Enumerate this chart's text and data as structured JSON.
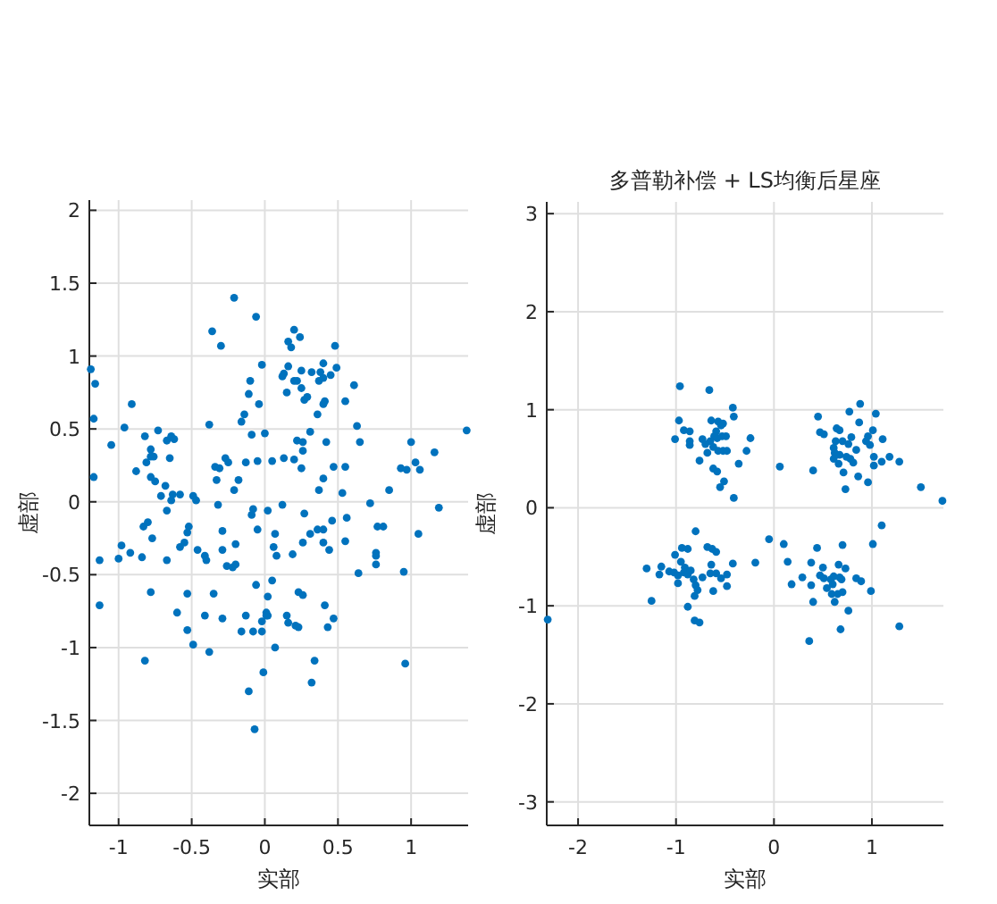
{
  "chart_data": [
    {
      "type": "scatter",
      "xlabel": "实部",
      "ylabel": "虚部",
      "xlim": [
        -1.2,
        1.39
      ],
      "ylim": [
        -2.22,
        2.07
      ],
      "xticks": [
        -1,
        -0.5,
        0,
        0.5,
        1
      ],
      "yticks": [
        -2,
        -1.5,
        -1,
        -0.5,
        0,
        0.5,
        1,
        1.5,
        2
      ],
      "grid": true,
      "marker": "circle",
      "series": [
        {
          "color": "#0072bd",
          "x": [
            -1.19,
            -1.16,
            -1.17,
            -1.17,
            -1.05,
            -0.96,
            -0.91,
            -0.88,
            -0.82,
            -0.81,
            -0.78,
            -0.78,
            -0.76,
            -0.78,
            -0.75,
            -0.73,
            -0.71,
            -0.67,
            -0.64,
            -0.62,
            -0.65,
            -0.68,
            -0.64,
            -0.58,
            -0.49,
            -0.47,
            -0.38,
            -0.36,
            -0.3,
            -0.21,
            -0.34,
            -0.31,
            -0.33,
            -0.27,
            -0.25,
            -0.18,
            -0.21,
            -0.16,
            -0.14,
            -0.11,
            -0.1,
            -0.06,
            -0.04,
            -0.02,
            -0.09,
            -0.13,
            -0.05,
            0,
            0.05,
            0.12,
            0.13,
            0.15,
            0.16,
            0.16,
            0.18,
            0.2,
            0.24,
            0.2,
            0.22,
            0.25,
            0.25,
            0.27,
            0.29,
            0.32,
            0.38,
            0.31,
            0.22,
            0.26,
            0.26,
            0.2,
            0.13,
            0.25,
            0.36,
            0.37,
            0.4,
            0.4,
            0.4,
            0.41,
            0.42,
            0.4,
            0.37,
            0.45,
            0.48,
            0.49,
            0.47,
            0.55,
            0.55,
            0.53,
            0.61,
            0.63,
            0.65,
            0.72,
            0.85,
            0.93,
            0.97,
            1.0,
            1.03,
            1.06,
            1.16,
            1.38,
            -1.13,
            -1.13,
            -1.0,
            -0.98,
            -0.92,
            -0.84,
            -0.83,
            -0.8,
            -0.77,
            -0.78,
            -0.82,
            -0.67,
            -0.63,
            -0.67,
            -0.58,
            -0.55,
            -0.53,
            -0.52,
            -0.6,
            -0.53,
            -0.53,
            -0.49,
            -0.46,
            -0.41,
            -0.4,
            -0.41,
            -0.38,
            -0.35,
            -0.32,
            -0.29,
            -0.29,
            -0.29,
            -0.26,
            -0.22,
            -0.2,
            -0.2,
            -0.16,
            -0.13,
            -0.08,
            -0.09,
            -0.05,
            -0.06,
            -0.08,
            -0.11,
            -0.07,
            -0.02,
            -0.02,
            0.01,
            0.01,
            0.02,
            0.02,
            0.02,
            -0.01,
            0.06,
            0.07,
            0.08,
            0.05,
            0.07,
            0.12,
            0.15,
            0.16,
            0.19,
            0.21,
            0.23,
            0.23,
            0.26,
            0.26,
            0.27,
            0.31,
            0.36,
            0.4,
            0.4,
            0.44,
            0.46,
            0.41,
            0.43,
            0.47,
            0.34,
            0.32,
            0.56,
            0.55,
            0.64,
            0.76,
            0.76,
            0.76,
            0.77,
            0.81,
            0.95,
            0.96,
            1.05,
            1.19
          ],
          "values": [
            0.91,
            0.81,
            0.57,
            0.17,
            0.39,
            0.51,
            0.67,
            0.21,
            0.45,
            0.27,
            0.36,
            0.31,
            0.31,
            0.17,
            0.14,
            0.49,
            0.04,
            0.42,
            0.45,
            0.43,
            0.3,
            0.11,
            0.01,
            0.05,
            0.04,
            0.01,
            0.53,
            1.17,
            1.07,
            1.4,
            0.24,
            0.23,
            0.15,
            0.3,
            0.27,
            0.15,
            0.08,
            0.55,
            0.6,
            0.74,
            0.83,
            1.27,
            0.67,
            0.94,
            0.46,
            0.27,
            0.28,
            0.47,
            0.28,
            0.86,
            0.88,
            0.75,
            0.93,
            1.1,
            1.06,
            1.18,
            1.13,
            0.83,
            0.83,
            0.9,
            0.78,
            0.7,
            0.72,
            0.89,
            0.89,
            0.48,
            0.42,
            0.41,
            0.35,
            0.29,
            0.3,
            0.23,
            0.6,
            0.83,
            0.95,
            0.85,
            0.67,
            0.69,
            0.41,
            0.16,
            0.08,
            0.87,
            1.07,
            0.92,
            0.24,
            0.69,
            0.24,
            0.06,
            0.8,
            0.52,
            0.41,
            -0.01,
            0.08,
            0.23,
            0.22,
            0.41,
            0.27,
            0.22,
            0.34,
            0.49,
            -0.4,
            -0.71,
            -0.39,
            -0.3,
            -0.35,
            -0.38,
            -0.17,
            -0.14,
            -0.25,
            -0.62,
            -1.09,
            -0.06,
            0.05,
            -0.4,
            -0.31,
            -0.28,
            -0.21,
            -0.17,
            -0.76,
            -0.63,
            -0.88,
            -0.98,
            -0.33,
            -0.37,
            -0.4,
            -0.78,
            -1.03,
            -0.63,
            -0.02,
            -0.2,
            -0.33,
            -0.8,
            -0.44,
            -0.45,
            -0.43,
            -0.29,
            -0.89,
            -0.78,
            -0.05,
            -0.09,
            -0.19,
            -0.57,
            -0.89,
            -1.3,
            -1.56,
            -0.89,
            -0.82,
            -0.76,
            -0.78,
            -0.78,
            -0.65,
            -0.06,
            -1.17,
            -0.31,
            -0.22,
            -0.37,
            -0.54,
            -1.0,
            -0.02,
            -0.78,
            -0.83,
            -0.36,
            -0.85,
            -0.62,
            -0.86,
            -0.64,
            -0.28,
            -0.08,
            -0.22,
            -0.19,
            -0.19,
            -0.28,
            -0.33,
            -0.13,
            -0.71,
            -0.86,
            -0.8,
            -1.09,
            -1.24,
            -0.11,
            -0.27,
            -0.49,
            -0.35,
            -0.37,
            -0.43,
            -0.17,
            -0.17,
            -0.48,
            -1.11,
            -0.22,
            -0.04
          ]
        }
      ]
    },
    {
      "type": "scatter",
      "title": "多普勒补偿 + LS均衡后星座",
      "xlabel": "实部",
      "ylabel": "虚部",
      "xlim": [
        -2.32,
        1.73
      ],
      "ylim": [
        -3.24,
        3.12
      ],
      "xticks": [
        -2,
        -1,
        0,
        1
      ],
      "yticks": [
        -3,
        -2,
        -1,
        0,
        1,
        2,
        3
      ],
      "grid": true,
      "marker": "circle",
      "series": [
        {
          "color": "#0072bd",
          "x": [
            -0.96,
            -0.66,
            -0.97,
            -0.92,
            -0.86,
            -1.01,
            -0.86,
            -0.86,
            -0.64,
            -0.57,
            -0.54,
            -0.52,
            -0.59,
            -0.61,
            -0.58,
            -0.53,
            -0.49,
            -0.65,
            -0.73,
            -0.7,
            -0.62,
            -0.57,
            -0.52,
            -0.48,
            -0.68,
            -0.76,
            -0.62,
            -0.58,
            -0.51,
            -0.55,
            -0.41,
            -0.42,
            -0.41,
            -0.24,
            -0.28,
            -0.36,
            0.06,
            0.45,
            0.47,
            0.51,
            0.4,
            0.64,
            0.67,
            0.77,
            0.88,
            0.87,
            1.04,
            1.01,
            0.96,
            0.94,
            1.11,
            0.98,
            0.7,
            0.76,
            0.79,
            0.84,
            0.63,
            0.61,
            0.62,
            0.67,
            0.74,
            0.61,
            0.66,
            0.78,
            0.81,
            0.71,
            0.86,
            0.96,
            0.73,
            1.02,
            1.02,
            1.1,
            1.18,
            1.28,
            1.5,
            1.72,
            -2.31,
            -1.3,
            -1.25,
            -1.15,
            -1.17,
            -1.01,
            -0.94,
            -0.88,
            -0.8,
            -0.68,
            -0.63,
            -0.59,
            -0.64,
            -0.42,
            -1.07,
            -1.02,
            -0.98,
            -0.98,
            -0.95,
            -0.91,
            -0.92,
            -0.88,
            -0.85,
            -0.82,
            -0.8,
            -0.78,
            -0.81,
            -0.88,
            -0.81,
            -0.76,
            -0.73,
            -0.65,
            -0.59,
            -0.54,
            -0.48,
            -0.48,
            -0.62,
            -0.05,
            -0.19,
            0.1,
            0.14,
            0.18,
            0.29,
            0.38,
            0.38,
            0.4,
            0.44,
            0.47,
            0.5,
            0.51,
            0.54,
            0.58,
            0.61,
            0.6,
            0.59,
            0.62,
            0.65,
            0.69,
            0.7,
            0.66,
            0.73,
            0.67,
            0.7,
            0.76,
            0.68,
            0.84,
            0.89,
            0.99,
            1.01,
            1.1,
            1.28,
            0.36
          ],
          "values": [
            1.24,
            1.2,
            0.89,
            0.79,
            0.78,
            0.7,
            0.68,
            0.64,
            0.89,
            0.88,
            0.84,
            0.86,
            0.78,
            0.73,
            0.71,
            0.73,
            0.73,
            0.68,
            0.7,
            0.65,
            0.62,
            0.58,
            0.58,
            0.58,
            0.56,
            0.48,
            0.4,
            0.37,
            0.27,
            0.21,
            0.1,
            1.02,
            0.93,
            0.71,
            0.58,
            0.45,
            0.42,
            0.93,
            0.77,
            0.75,
            0.38,
            0.81,
            0.79,
            0.98,
            1.06,
            0.87,
            0.96,
            0.79,
            0.73,
            0.68,
            0.7,
            0.64,
            0.68,
            0.65,
            0.72,
            0.59,
            0.68,
            0.61,
            0.56,
            0.54,
            0.52,
            0.5,
            0.45,
            0.5,
            0.46,
            0.36,
            0.32,
            0.26,
            0.19,
            0.52,
            0.43,
            0.47,
            0.52,
            0.47,
            0.21,
            0.07,
            -1.14,
            -0.62,
            -0.95,
            -0.6,
            -0.68,
            -0.48,
            -0.41,
            -0.42,
            -0.24,
            -0.4,
            -0.42,
            -0.45,
            -0.58,
            -0.57,
            -0.65,
            -0.66,
            -0.69,
            -0.77,
            -0.55,
            -0.61,
            -0.66,
            -0.68,
            -0.64,
            -0.73,
            -0.79,
            -0.84,
            -0.9,
            -1.01,
            -1.15,
            -1.17,
            -0.71,
            -0.67,
            -0.67,
            -0.72,
            -0.68,
            -0.8,
            -0.85,
            -0.32,
            -0.56,
            -0.37,
            -0.55,
            -0.78,
            -0.71,
            -0.56,
            -0.79,
            -0.96,
            -0.41,
            -0.69,
            -0.61,
            -0.72,
            -0.82,
            -0.73,
            -0.7,
            -0.78,
            -0.88,
            -0.96,
            -0.88,
            -0.73,
            -0.86,
            -0.58,
            -0.62,
            -0.71,
            -0.38,
            -1.05,
            -1.24,
            -0.72,
            -0.75,
            -0.85,
            -0.37,
            -0.18,
            -1.21,
            -1.36
          ]
        }
      ]
    }
  ]
}
